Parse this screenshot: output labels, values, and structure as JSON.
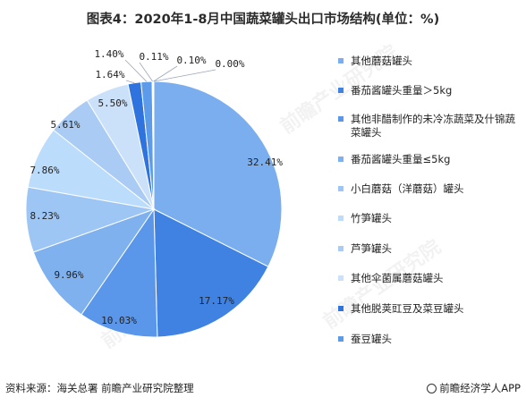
{
  "page_title": "图表4：2020年1-8月中国蔬菜罐头出口市场结构(单位：%)",
  "footer": {
    "source": "资料来源：海关总署  前瞻产业研究院整理",
    "brand": "前瞻经济学人APP"
  },
  "watermark": {
    "name": "前瞻产业研究院"
  },
  "chart_data": {
    "type": "pie",
    "title": "图表4：2020年1-8月中国蔬菜罐头出口市场结构(单位：%)",
    "unit": "%",
    "legend_position": "right",
    "slices": [
      {
        "name": "其他蘑菇罐头",
        "value": 32.41,
        "label": "32.41%",
        "color": "#7aaeef"
      },
      {
        "name": "番茄酱罐头重量＞5kg",
        "value": 17.17,
        "label": "17.17%",
        "color": "#3f82e2"
      },
      {
        "name": "其他非醋制作的未冷冻蔬菜及什锦蔬菜罐头",
        "value": 10.03,
        "label": "10.03%",
        "color": "#5a97ea"
      },
      {
        "name": "番茄酱罐头重量≤5kg",
        "value": 9.96,
        "label": "9.96%",
        "color": "#7fb1ef"
      },
      {
        "name": "小白蘑菇（洋蘑菇）罐头",
        "value": 8.23,
        "label": "8.23%",
        "color": "#9ec6f5"
      },
      {
        "name": "竹笋罐头",
        "value": 7.86,
        "label": "7.86%",
        "color": "#bcdcfb"
      },
      {
        "name": "芦笋罐头",
        "value": 5.61,
        "label": "5.61%",
        "color": "#a9cbf4"
      },
      {
        "name": "其他伞菌属蘑菇罐头",
        "value": 5.5,
        "label": "5.50%",
        "color": "#cbe1fa"
      },
      {
        "name": "其他脱荚豇豆及菜豆罐头",
        "value": 1.64,
        "label": "1.64%",
        "color": "#2f74de"
      },
      {
        "name": "蚕豆罐头",
        "value": 1.4,
        "label": "1.40%",
        "color": "#5b9bea"
      },
      {
        "value": 0.11,
        "label": "0.11%",
        "color": "#e2ebf8"
      },
      {
        "value": 0.1,
        "label": "0.10%",
        "color": "#c8d9f0"
      },
      {
        "value": 0.0,
        "label": "0.00%",
        "color": "#8fa7c8"
      }
    ]
  }
}
